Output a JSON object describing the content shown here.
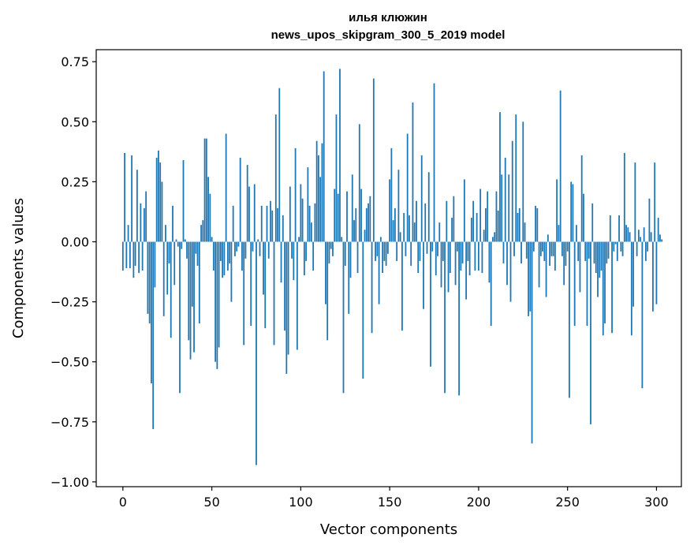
{
  "chart_data": {
    "type": "bar",
    "title_line1": "илья клюжин",
    "title_line2": "news_upos_skipgram_300_5_2019 model",
    "xlabel": "Vector components",
    "ylabel": "Components values",
    "xlim": [
      -15,
      314
    ],
    "ylim": [
      -1.02,
      0.8
    ],
    "xticks": [
      0,
      50,
      100,
      150,
      200,
      250,
      300
    ],
    "yticks": [
      0.75,
      0.5,
      0.25,
      0.0,
      -0.25,
      -0.5,
      -0.75,
      -1.0
    ],
    "ytick_labels": [
      "0.75",
      "0.50",
      "0.25",
      "0.00",
      "−0.25",
      "−0.50",
      "−0.75",
      "−1.00"
    ],
    "bar_color": "#1f77b4",
    "grid": false,
    "values": [
      -0.12,
      0.37,
      -0.11,
      0.07,
      -0.11,
      0.36,
      -0.15,
      -0.1,
      0.3,
      -0.13,
      0.16,
      -0.12,
      0.14,
      0.21,
      -0.3,
      -0.34,
      -0.59,
      -0.78,
      -0.19,
      0.35,
      0.38,
      0.33,
      0.25,
      -0.31,
      0.07,
      -0.22,
      -0.09,
      -0.4,
      0.15,
      -0.18,
      0.01,
      -0.02,
      -0.63,
      -0.03,
      0.34,
      0.01,
      -0.07,
      -0.41,
      -0.49,
      -0.27,
      -0.46,
      -0.05,
      -0.1,
      -0.34,
      0.07,
      0.09,
      0.43,
      0.43,
      0.27,
      0.2,
      0.02,
      -0.12,
      -0.5,
      -0.53,
      -0.44,
      -0.08,
      -0.15,
      -0.14,
      0.45,
      -0.12,
      -0.09,
      -0.25,
      0.15,
      -0.06,
      -0.04,
      -0.02,
      0.35,
      -0.12,
      -0.43,
      -0.07,
      0.32,
      0.23,
      -0.35,
      -0.04,
      0.24,
      -0.93,
      0.01,
      -0.06,
      0.15,
      -0.22,
      -0.36,
      0.15,
      -0.07,
      0.17,
      0.13,
      -0.43,
      0.53,
      0.14,
      0.64,
      -0.17,
      0.11,
      -0.37,
      -0.55,
      -0.47,
      0.23,
      -0.07,
      -0.16,
      0.39,
      -0.45,
      0.02,
      0.24,
      0.18,
      -0.14,
      -0.08,
      0.31,
      0.15,
      0.08,
      -0.12,
      0.16,
      0.42,
      0.36,
      0.27,
      0.41,
      0.71,
      -0.26,
      -0.41,
      -0.09,
      -0.03,
      -0.06,
      0.22,
      0.53,
      0.2,
      0.72,
      0.02,
      -0.63,
      -0.1,
      0.21,
      -0.3,
      -0.15,
      0.28,
      0.09,
      0.14,
      -0.13,
      0.49,
      0.22,
      -0.57,
      0.05,
      0.14,
      0.16,
      0.19,
      -0.38,
      0.68,
      -0.08,
      -0.06,
      -0.26,
      0.02,
      -0.13,
      -0.08,
      -0.1,
      -0.05,
      0.26,
      0.39,
      0.09,
      0.14,
      -0.08,
      0.3,
      0.04,
      -0.37,
      0.12,
      -0.06,
      0.45,
      0.11,
      -0.1,
      0.58,
      0.08,
      0.17,
      -0.13,
      -0.08,
      0.36,
      -0.28,
      0.16,
      -0.05,
      0.29,
      -0.52,
      -0.04,
      0.66,
      -0.14,
      -0.06,
      0.08,
      -0.19,
      -0.08,
      -0.63,
      0.17,
      -0.21,
      -0.13,
      0.1,
      0.19,
      -0.18,
      -0.04,
      -0.64,
      -0.12,
      -0.09,
      0.26,
      -0.24,
      -0.08,
      -0.14,
      0.1,
      0.17,
      -0.12,
      0.12,
      -0.12,
      0.22,
      -0.13,
      0.05,
      0.14,
      0.21,
      -0.17,
      -0.35,
      0.02,
      0.04,
      0.21,
      0.13,
      0.54,
      0.28,
      -0.09,
      0.35,
      -0.18,
      0.28,
      -0.25,
      0.42,
      -0.06,
      0.53,
      0.12,
      0.14,
      -0.09,
      0.5,
      0.08,
      -0.07,
      -0.31,
      -0.29,
      -0.84,
      -0.04,
      0.15,
      0.14,
      -0.19,
      -0.06,
      -0.04,
      -0.08,
      -0.23,
      0.03,
      -0.1,
      -0.06,
      -0.06,
      -0.12,
      0.26,
      0.07,
      0.63,
      -0.06,
      -0.18,
      -0.1,
      -0.04,
      -0.65,
      0.25,
      0.24,
      -0.35,
      0.07,
      -0.08,
      -0.21,
      0.36,
      0.2,
      -0.08,
      -0.35,
      -0.07,
      -0.76,
      0.16,
      -0.09,
      -0.13,
      -0.23,
      -0.15,
      -0.12,
      -0.39,
      -0.34,
      -0.09,
      -0.07,
      0.11,
      -0.38,
      -0.04,
      -0.01,
      -0.08,
      0.11,
      -0.04,
      -0.06,
      0.37,
      0.07,
      0.06,
      0.04,
      -0.39,
      -0.27,
      0.33,
      -0.06,
      0.05,
      0.02,
      -0.61,
      0.06,
      -0.08,
      -0.04,
      0.18,
      0.04,
      -0.29,
      0.33,
      -0.26,
      0.1,
      0.03,
      0.01
    ]
  }
}
